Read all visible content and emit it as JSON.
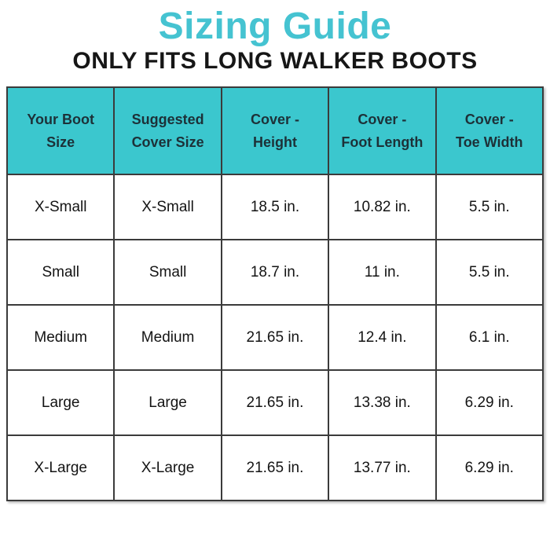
{
  "page": {
    "title": "Sizing Guide",
    "subtitle": "ONLY FITS LONG WALKER BOOTS"
  },
  "colors": {
    "title_teal": "#45c3d1",
    "header_teal": "#3bc7ce",
    "border_dark": "#3b3b3b",
    "header_text": "#1d3138",
    "cell_text": "#141414"
  },
  "table": {
    "columns": [
      {
        "label": "Your Boot\nSize"
      },
      {
        "label": "Suggested\nCover Size"
      },
      {
        "label": "Cover -\nHeight"
      },
      {
        "label": "Cover -\nFoot Length"
      },
      {
        "label": "Cover -\nToe Width"
      }
    ],
    "rows": [
      [
        "X-Small",
        "X-Small",
        "18.5 in.",
        "10.82 in.",
        "5.5 in."
      ],
      [
        "Small",
        "Small",
        "18.7 in.",
        "11 in.",
        "5.5 in."
      ],
      [
        "Medium",
        "Medium",
        "21.65 in.",
        "12.4 in.",
        "6.1 in."
      ],
      [
        "Large",
        "Large",
        "21.65 in.",
        "13.38 in.",
        "6.29 in."
      ],
      [
        "X-Large",
        "X-Large",
        "21.65 in.",
        "13.77 in.",
        "6.29 in."
      ]
    ]
  }
}
